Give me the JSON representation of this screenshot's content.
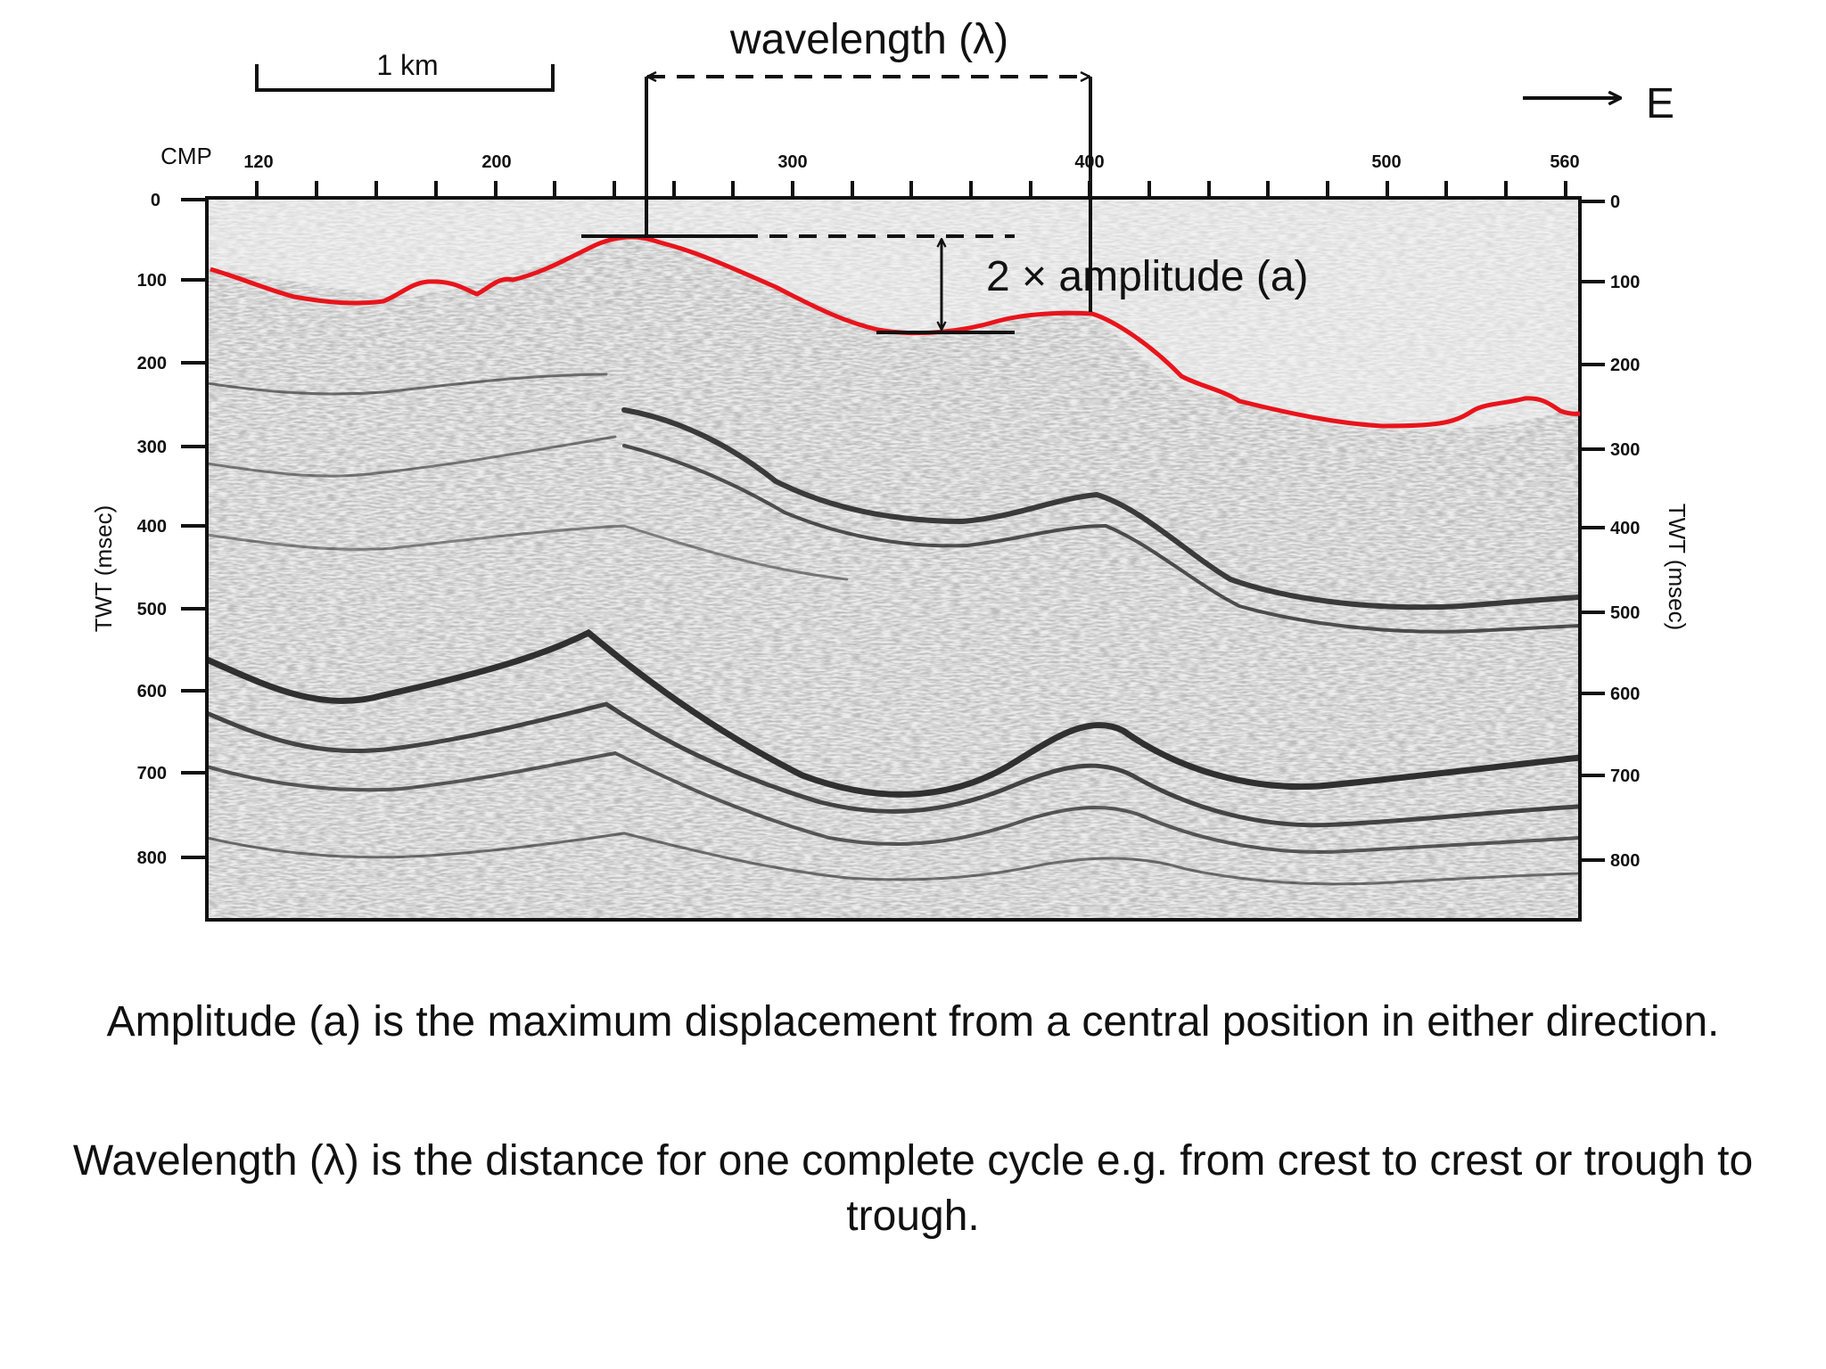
{
  "scale_bar": {
    "label": "1 km"
  },
  "annotations": {
    "wavelength": "wavelength (λ)",
    "amplitude": "2 × amplitude (a)",
    "direction": "E"
  },
  "axes": {
    "x_title": "CMP",
    "x_ticks": [
      "120",
      "200",
      "300",
      "400",
      "500",
      "560"
    ],
    "y_title_left": "TWT (msec)",
    "y_title_right": "TWT (msec)",
    "y_ticks": [
      "0",
      "100",
      "200",
      "300",
      "400",
      "500",
      "600",
      "700",
      "800"
    ]
  },
  "colors": {
    "horizon": "#e8141c",
    "ink": "#111111"
  },
  "captions": {
    "amplitude": "Amplitude (a) is the maximum displacement from a central position in either direction.",
    "wavelength": "Wavelength (λ) is the distance for one complete cycle e.g. from crest to crest or trough to trough."
  }
}
